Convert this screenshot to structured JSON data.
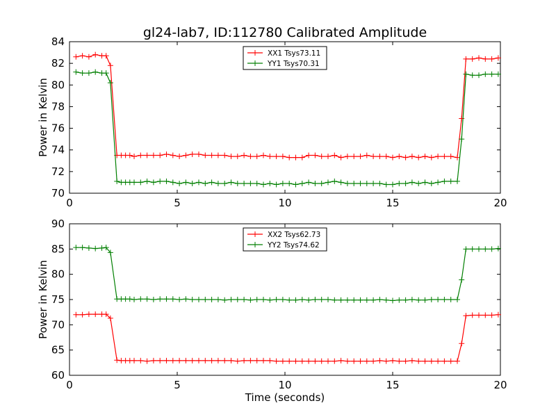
{
  "title": "gl24-lab7, ID:112780 Calibrated Amplitude",
  "colors": {
    "red": "#ff0000",
    "green": "#007f00"
  },
  "chart_data": [
    {
      "type": "line",
      "title": "gl24-lab7, ID:112780 Calibrated Amplitude",
      "xlabel": "",
      "ylabel": "Power in Kelvin",
      "xlim": [
        0,
        20
      ],
      "ylim": [
        70,
        84
      ],
      "xticks": [
        0,
        5,
        10,
        15,
        20
      ],
      "yticks": [
        70,
        72,
        74,
        76,
        78,
        80,
        82,
        84
      ],
      "grid": false,
      "legend": "top-center",
      "x": [
        0.3,
        0.6,
        0.9,
        1.2,
        1.5,
        1.7,
        1.9,
        2.2,
        2.4,
        2.6,
        2.8,
        3.0,
        3.3,
        3.6,
        3.9,
        4.2,
        4.5,
        4.8,
        5.1,
        5.4,
        5.7,
        6.0,
        6.3,
        6.6,
        6.9,
        7.2,
        7.5,
        7.8,
        8.1,
        8.4,
        8.7,
        9.0,
        9.3,
        9.6,
        9.9,
        10.2,
        10.5,
        10.8,
        11.1,
        11.4,
        11.7,
        12.0,
        12.3,
        12.6,
        12.9,
        13.2,
        13.5,
        13.8,
        14.1,
        14.4,
        14.7,
        15.0,
        15.3,
        15.6,
        15.9,
        16.2,
        16.5,
        16.8,
        17.1,
        17.4,
        17.7,
        18.0,
        18.2,
        18.4,
        18.7,
        19.0,
        19.3,
        19.6,
        19.9
      ],
      "series": [
        {
          "name": "XX1 Tsys73.11",
          "color": "#ff0000",
          "values": [
            82.6,
            82.7,
            82.6,
            82.8,
            82.7,
            82.7,
            81.8,
            73.5,
            73.5,
            73.5,
            73.5,
            73.4,
            73.5,
            73.5,
            73.5,
            73.5,
            73.6,
            73.5,
            73.4,
            73.5,
            73.6,
            73.6,
            73.5,
            73.5,
            73.5,
            73.5,
            73.4,
            73.4,
            73.5,
            73.4,
            73.4,
            73.5,
            73.4,
            73.4,
            73.4,
            73.3,
            73.3,
            73.3,
            73.5,
            73.5,
            73.4,
            73.4,
            73.5,
            73.3,
            73.4,
            73.4,
            73.4,
            73.5,
            73.4,
            73.4,
            73.4,
            73.3,
            73.4,
            73.3,
            73.4,
            73.3,
            73.4,
            73.3,
            73.4,
            73.4,
            73.4,
            73.3,
            76.9,
            82.4,
            82.4,
            82.5,
            82.4,
            82.4,
            82.5
          ]
        },
        {
          "name": "YY1 Tsys70.31",
          "color": "#007f00",
          "values": [
            81.2,
            81.1,
            81.1,
            81.2,
            81.1,
            81.1,
            80.2,
            71.1,
            71.0,
            71.0,
            71.0,
            71.0,
            71.0,
            71.1,
            71.0,
            71.1,
            71.1,
            71.0,
            70.9,
            71.0,
            70.9,
            71.0,
            70.9,
            71.0,
            70.9,
            70.9,
            71.0,
            70.9,
            70.9,
            70.9,
            70.9,
            70.8,
            70.9,
            70.8,
            70.9,
            70.9,
            70.8,
            70.9,
            71.0,
            70.9,
            70.9,
            71.0,
            71.1,
            71.0,
            70.9,
            70.9,
            70.9,
            70.9,
            70.9,
            70.9,
            70.8,
            70.8,
            70.9,
            70.9,
            71.0,
            70.9,
            71.0,
            70.9,
            71.0,
            71.1,
            71.1,
            71.1,
            75.0,
            81.0,
            80.9,
            80.9,
            81.0,
            81.0,
            81.0
          ]
        }
      ]
    },
    {
      "type": "line",
      "title": "",
      "xlabel": "Time (seconds)",
      "ylabel": "Power in Kelvin",
      "xlim": [
        0,
        20
      ],
      "ylim": [
        60,
        90
      ],
      "xticks": [
        0,
        5,
        10,
        15,
        20
      ],
      "yticks": [
        60,
        65,
        70,
        75,
        80,
        85,
        90
      ],
      "grid": false,
      "legend": "top-center",
      "x": [
        0.3,
        0.6,
        0.9,
        1.2,
        1.5,
        1.7,
        1.9,
        2.2,
        2.4,
        2.6,
        2.8,
        3.0,
        3.3,
        3.6,
        3.9,
        4.2,
        4.5,
        4.8,
        5.1,
        5.4,
        5.7,
        6.0,
        6.3,
        6.6,
        6.9,
        7.2,
        7.5,
        7.8,
        8.1,
        8.4,
        8.7,
        9.0,
        9.3,
        9.6,
        9.9,
        10.2,
        10.5,
        10.8,
        11.1,
        11.4,
        11.7,
        12.0,
        12.3,
        12.6,
        12.9,
        13.2,
        13.5,
        13.8,
        14.1,
        14.4,
        14.7,
        15.0,
        15.3,
        15.6,
        15.9,
        16.2,
        16.5,
        16.8,
        17.1,
        17.4,
        17.7,
        18.0,
        18.2,
        18.4,
        18.7,
        19.0,
        19.3,
        19.6,
        19.9
      ],
      "series": [
        {
          "name": "XX2 Tsys62.73",
          "color": "#ff0000",
          "values": [
            72.0,
            72.0,
            72.1,
            72.1,
            72.1,
            72.1,
            71.3,
            63.0,
            62.9,
            62.9,
            62.9,
            62.9,
            62.9,
            62.8,
            62.9,
            62.9,
            62.9,
            62.9,
            62.9,
            62.9,
            62.9,
            62.9,
            62.9,
            62.9,
            62.9,
            62.9,
            62.9,
            62.8,
            62.9,
            62.9,
            62.9,
            62.9,
            62.9,
            62.8,
            62.8,
            62.8,
            62.8,
            62.8,
            62.8,
            62.8,
            62.8,
            62.8,
            62.8,
            62.9,
            62.8,
            62.8,
            62.8,
            62.8,
            62.8,
            62.9,
            62.8,
            62.9,
            62.8,
            62.8,
            62.9,
            62.8,
            62.8,
            62.8,
            62.8,
            62.8,
            62.8,
            62.8,
            66.3,
            71.8,
            71.9,
            71.9,
            71.9,
            71.9,
            72.0
          ]
        },
        {
          "name": "YY2 Tsys74.62",
          "color": "#007f00",
          "values": [
            85.3,
            85.3,
            85.2,
            85.1,
            85.2,
            85.3,
            84.3,
            75.1,
            75.1,
            75.1,
            75.1,
            75.0,
            75.1,
            75.1,
            75.0,
            75.1,
            75.1,
            75.1,
            75.0,
            75.1,
            75.0,
            75.0,
            75.0,
            75.0,
            75.0,
            74.9,
            75.0,
            75.0,
            75.0,
            74.9,
            75.0,
            75.0,
            74.9,
            75.0,
            75.0,
            74.9,
            74.9,
            75.0,
            74.9,
            75.0,
            75.0,
            75.0,
            74.9,
            74.9,
            74.9,
            74.9,
            74.9,
            74.9,
            74.9,
            75.0,
            74.9,
            74.8,
            74.9,
            74.9,
            75.0,
            74.9,
            74.9,
            75.0,
            75.0,
            75.0,
            75.0,
            75.0,
            78.9,
            85.0,
            85.0,
            85.0,
            85.0,
            85.0,
            85.1
          ]
        }
      ]
    }
  ]
}
